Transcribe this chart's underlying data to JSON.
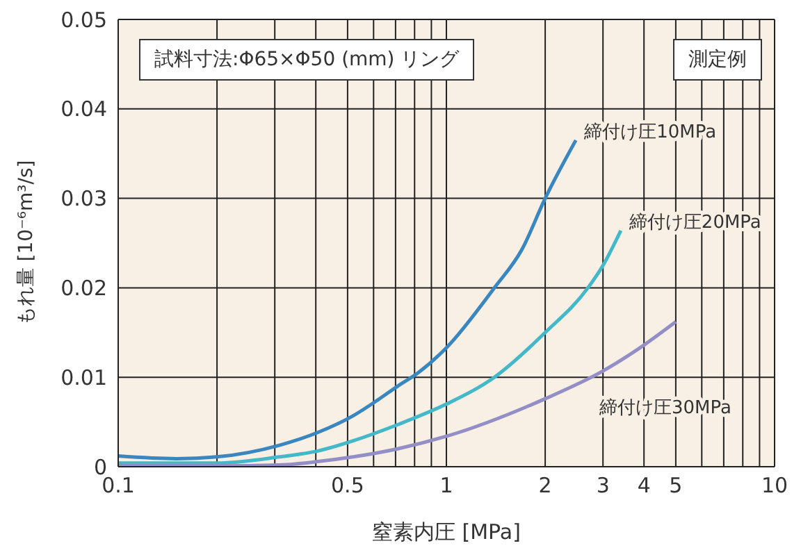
{
  "chart_data": {
    "type": "line",
    "xlabel": "窒素内圧 [MPa]",
    "ylabel": "もれ量 [10⁻⁶m³/s]",
    "annotations": [
      "試料寸法:Φ65×Φ50 (mm) リング",
      "測定例"
    ],
    "log": "x",
    "grid": true,
    "legend": false,
    "marker": "none",
    "line_style": "solid",
    "xlim": [
      0.1,
      10
    ],
    "ylim": [
      0,
      0.05
    ],
    "xticks": [
      0.1,
      {
        "value": 0.2,
        "label": null
      },
      {
        "value": 0.3,
        "label": null
      },
      {
        "value": 0.4,
        "label": null
      },
      0.5,
      {
        "value": 0.6,
        "label": null
      },
      {
        "value": 0.7,
        "label": null
      },
      {
        "value": 0.8,
        "label": null
      },
      {
        "value": 0.9,
        "label": null
      },
      1,
      2,
      3,
      4,
      5,
      {
        "value": 6,
        "label": null
      },
      {
        "value": 7,
        "label": null
      },
      {
        "value": 8,
        "label": null
      },
      {
        "value": 9,
        "label": null
      },
      10
    ],
    "yticks": [
      0,
      0.01,
      0.02,
      0.03,
      0.04,
      0.05
    ],
    "series": [
      {
        "name": "締付け圧10MPa",
        "color": "#3a87c0",
        "x": [
          0.1,
          0.15,
          0.2,
          0.31,
          0.41,
          0.52,
          0.62,
          0.71,
          0.82,
          1,
          1.4,
          1.7,
          2,
          2.48
        ],
        "values": [
          0.0012,
          0.0009,
          0.0011,
          0.0024,
          0.0039,
          0.0057,
          0.0075,
          0.009,
          0.0105,
          0.0133,
          0.02,
          0.0243,
          0.03,
          0.0365
        ]
      },
      {
        "name": "締付け圧20MPa",
        "color": "#42b8c8",
        "x": [
          0.1,
          0.2,
          0.31,
          0.41,
          0.52,
          0.71,
          1,
          1.4,
          2,
          2.7,
          3,
          3.4
        ],
        "values": [
          0.0004,
          0.0004,
          0.0011,
          0.0018,
          0.0029,
          0.0047,
          0.007,
          0.01,
          0.015,
          0.02,
          0.0225,
          0.0264
        ]
      },
      {
        "name": "締付け圧30MPa",
        "color": "#938fc6",
        "x": [
          0.1,
          0.2,
          0.31,
          0.41,
          0.52,
          0.71,
          1,
          2,
          3,
          4,
          5
        ],
        "values": [
          0.0001,
          0.0001,
          0.0002,
          0.0006,
          0.0011,
          0.002,
          0.0034,
          0.0076,
          0.0107,
          0.0136,
          0.0162
        ]
      }
    ]
  }
}
